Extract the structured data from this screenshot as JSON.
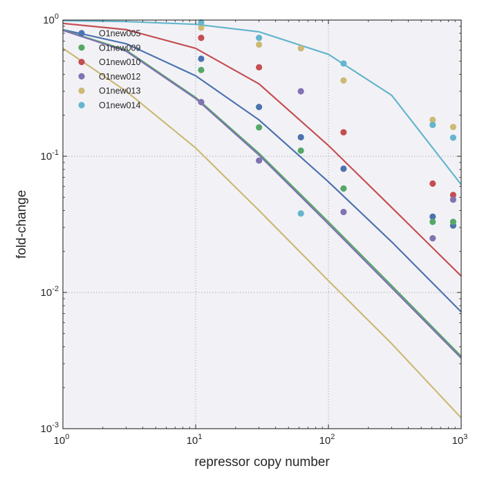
{
  "chart_data": {
    "type": "scatter",
    "title": "",
    "xlabel": "repressor copy number",
    "ylabel": "fold-change",
    "xscale": "log",
    "yscale": "log",
    "xlim": [
      1,
      1000
    ],
    "ylim": [
      0.001,
      1
    ],
    "grid": true,
    "legend_position": "top-left",
    "x_ticks": [
      {
        "base": "10",
        "exp": "0",
        "value": 1
      },
      {
        "base": "10",
        "exp": "1",
        "value": 10
      },
      {
        "base": "10",
        "exp": "2",
        "value": 100
      },
      {
        "base": "10",
        "exp": "3",
        "value": 1000
      }
    ],
    "y_ticks": [
      {
        "base": "10",
        "exp": "0",
        "value": 1
      },
      {
        "base": "10",
        "exp": "-1",
        "value": 0.1
      },
      {
        "base": "10",
        "exp": "-2",
        "value": 0.01
      },
      {
        "base": "10",
        "exp": "-3",
        "value": 0.001
      }
    ],
    "series": [
      {
        "name": "O1new005",
        "color": "#4c72b0",
        "points": [
          [
            11,
            0.52
          ],
          [
            30,
            0.23
          ],
          [
            62,
            0.138
          ],
          [
            130,
            0.081
          ],
          [
            610,
            0.036
          ],
          [
            870,
            0.031
          ]
        ],
        "curve": [
          [
            1,
            0.85
          ],
          [
            3,
            0.67
          ],
          [
            10,
            0.39
          ],
          [
            30,
            0.185
          ],
          [
            100,
            0.065
          ],
          [
            300,
            0.0235
          ],
          [
            1000,
            0.0072
          ]
        ]
      },
      {
        "name": "O1new009",
        "color": "#55a868",
        "points": [
          [
            11,
            0.43
          ],
          [
            30,
            0.163
          ],
          [
            62,
            0.11
          ],
          [
            130,
            0.058
          ],
          [
            610,
            0.033
          ],
          [
            870,
            0.033
          ]
        ],
        "curve": [
          [
            1,
            0.845
          ],
          [
            3,
            0.6
          ],
          [
            10,
            0.27
          ],
          [
            30,
            0.105
          ],
          [
            100,
            0.033
          ],
          [
            300,
            0.0112
          ],
          [
            1000,
            0.0034
          ]
        ]
      },
      {
        "name": "O1new010",
        "color": "#c44e52",
        "points": [
          [
            11,
            0.74
          ],
          [
            30,
            0.45
          ],
          [
            130,
            0.15
          ],
          [
            610,
            0.063
          ],
          [
            870,
            0.052
          ]
        ],
        "curve": [
          [
            1,
            0.945
          ],
          [
            3,
            0.85
          ],
          [
            10,
            0.62
          ],
          [
            30,
            0.34
          ],
          [
            100,
            0.12
          ],
          [
            300,
            0.042
          ],
          [
            1000,
            0.0132
          ]
        ]
      },
      {
        "name": "O1new012",
        "color": "#8172b2",
        "points": [
          [
            11,
            0.25
          ],
          [
            30,
            0.093
          ],
          [
            62,
            0.3
          ],
          [
            130,
            0.039
          ],
          [
            610,
            0.025
          ],
          [
            870,
            0.048
          ]
        ],
        "curve": [
          [
            1,
            0.84
          ],
          [
            3,
            0.59
          ],
          [
            10,
            0.265
          ],
          [
            30,
            0.102
          ],
          [
            100,
            0.0318
          ],
          [
            300,
            0.0108
          ],
          [
            1000,
            0.0033
          ]
        ]
      },
      {
        "name": "O1new013",
        "color": "#ccb974",
        "points": [
          [
            11,
            0.88
          ],
          [
            30,
            0.66
          ],
          [
            62,
            0.62
          ],
          [
            130,
            0.36
          ],
          [
            610,
            0.185
          ],
          [
            870,
            0.164
          ]
        ],
        "curve": [
          [
            1,
            0.62
          ],
          [
            3,
            0.3
          ],
          [
            10,
            0.115
          ],
          [
            30,
            0.04
          ],
          [
            100,
            0.0122
          ],
          [
            300,
            0.0042
          ],
          [
            1000,
            0.0012
          ]
        ]
      },
      {
        "name": "O1new014",
        "color": "#64b5cd",
        "points": [
          [
            11,
            0.96
          ],
          [
            30,
            0.74
          ],
          [
            62,
            0.038
          ],
          [
            130,
            0.48
          ],
          [
            610,
            0.17
          ],
          [
            870,
            0.137
          ]
        ],
        "curve": [
          [
            1,
            0.99
          ],
          [
            3,
            0.975
          ],
          [
            10,
            0.93
          ],
          [
            30,
            0.82
          ],
          [
            100,
            0.56
          ],
          [
            300,
            0.28
          ],
          [
            1000,
            0.062
          ]
        ]
      }
    ]
  }
}
